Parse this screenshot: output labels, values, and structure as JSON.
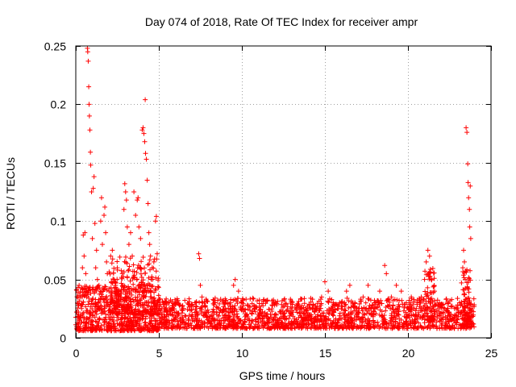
{
  "chart_data": {
    "type": "scatter",
    "title": "Day 074 of 2018, Rate Of TEC Index for receiver ampr",
    "xlabel": "GPS time / hours",
    "ylabel": "ROTI / TECUs",
    "xlim": [
      0,
      25
    ],
    "ylim": [
      0,
      0.25
    ],
    "x_ticks": [
      0,
      5,
      10,
      15,
      20,
      25
    ],
    "x_tick_labels": [
      "0",
      "5",
      "10",
      "15",
      "20",
      "25"
    ],
    "y_ticks": [
      0,
      0.05,
      0.1,
      0.15,
      0.2,
      0.25
    ],
    "y_tick_labels": [
      "0",
      "0.05",
      "0.1",
      "0.15",
      "0.2",
      "0.25"
    ],
    "grid": true,
    "marker": "plus",
    "color": "#ff0000",
    "series": [
      {
        "name": "ROTI",
        "points": [
          [
            0.05,
            0.022
          ],
          [
            0.1,
            0.018
          ],
          [
            0.15,
            0.012
          ],
          [
            0.2,
            0.045
          ],
          [
            0.25,
            0.008
          ],
          [
            0.3,
            0.035
          ],
          [
            0.35,
            0.025
          ],
          [
            0.4,
            0.06
          ],
          [
            0.45,
            0.088
          ],
          [
            0.5,
            0.07
          ],
          [
            0.55,
            0.09
          ],
          [
            0.6,
            0.055
          ],
          [
            0.65,
            0.04
          ],
          [
            0.7,
            0.248
          ],
          [
            0.72,
            0.245
          ],
          [
            0.75,
            0.237
          ],
          [
            0.78,
            0.215
          ],
          [
            0.8,
            0.2
          ],
          [
            0.82,
            0.19
          ],
          [
            0.85,
            0.178
          ],
          [
            0.88,
            0.159
          ],
          [
            0.9,
            0.148
          ],
          [
            0.95,
            0.125
          ],
          [
            1.0,
            0.085
          ],
          [
            1.05,
            0.128
          ],
          [
            1.1,
            0.138
          ],
          [
            1.15,
            0.098
          ],
          [
            1.2,
            0.06
          ],
          [
            1.25,
            0.075
          ],
          [
            1.3,
            0.05
          ],
          [
            1.35,
            0.03
          ],
          [
            1.4,
            0.045
          ],
          [
            1.5,
            0.1
          ],
          [
            1.55,
            0.12
          ],
          [
            1.6,
            0.08
          ],
          [
            1.7,
            0.105
          ],
          [
            1.75,
            0.112
          ],
          [
            1.8,
            0.09
          ],
          [
            1.85,
            0.065
          ],
          [
            1.9,
            0.055
          ],
          [
            1.95,
            0.028
          ],
          [
            2.0,
            0.04
          ],
          [
            2.1,
            0.07
          ],
          [
            2.2,
            0.075
          ],
          [
            2.3,
            0.05
          ],
          [
            2.4,
            0.045
          ],
          [
            2.5,
            0.06
          ],
          [
            2.6,
            0.04
          ],
          [
            2.7,
            0.035
          ],
          [
            2.8,
            0.055
          ],
          [
            2.9,
            0.11
          ],
          [
            2.95,
            0.132
          ],
          [
            3.0,
            0.125
          ],
          [
            3.05,
            0.118
          ],
          [
            3.1,
            0.095
          ],
          [
            3.2,
            0.08
          ],
          [
            3.3,
            0.09
          ],
          [
            3.4,
            0.07
          ],
          [
            3.5,
            0.125
          ],
          [
            3.6,
            0.105
          ],
          [
            3.7,
            0.118
          ],
          [
            3.75,
            0.12
          ],
          [
            3.8,
            0.095
          ],
          [
            3.9,
            0.085
          ],
          [
            4.0,
            0.178
          ],
          [
            4.05,
            0.18
          ],
          [
            4.1,
            0.175
          ],
          [
            4.15,
            0.168
          ],
          [
            4.18,
            0.204
          ],
          [
            4.2,
            0.158
          ],
          [
            4.25,
            0.153
          ],
          [
            4.3,
            0.135
          ],
          [
            4.35,
            0.115
          ],
          [
            4.4,
            0.09
          ],
          [
            4.45,
            0.08
          ],
          [
            4.5,
            0.07
          ],
          [
            4.6,
            0.06
          ],
          [
            4.7,
            0.065
          ],
          [
            4.8,
            0.1
          ],
          [
            4.85,
            0.104
          ],
          [
            4.9,
            0.072
          ],
          [
            5.0,
            0.03
          ],
          [
            5.2,
            0.02
          ],
          [
            5.5,
            0.015
          ],
          [
            5.8,
            0.025
          ],
          [
            6.0,
            0.018
          ],
          [
            6.2,
            0.02
          ],
          [
            6.5,
            0.025
          ],
          [
            6.8,
            0.015
          ],
          [
            7.0,
            0.02
          ],
          [
            7.2,
            0.03
          ],
          [
            7.4,
            0.072
          ],
          [
            7.45,
            0.068
          ],
          [
            7.5,
            0.045
          ],
          [
            7.6,
            0.035
          ],
          [
            7.8,
            0.02
          ],
          [
            8.0,
            0.015
          ],
          [
            8.3,
            0.02
          ],
          [
            8.6,
            0.025
          ],
          [
            9.0,
            0.03
          ],
          [
            9.3,
            0.025
          ],
          [
            9.5,
            0.045
          ],
          [
            9.6,
            0.05
          ],
          [
            9.8,
            0.04
          ],
          [
            10.0,
            0.03
          ],
          [
            10.3,
            0.02
          ],
          [
            10.6,
            0.015
          ],
          [
            11.0,
            0.018
          ],
          [
            11.5,
            0.02
          ],
          [
            12.0,
            0.015
          ],
          [
            12.5,
            0.018
          ],
          [
            13.0,
            0.02
          ],
          [
            13.3,
            0.028
          ],
          [
            13.6,
            0.022
          ],
          [
            14.0,
            0.018
          ],
          [
            14.5,
            0.025
          ],
          [
            14.8,
            0.035
          ],
          [
            15.0,
            0.048
          ],
          [
            15.2,
            0.04
          ],
          [
            15.5,
            0.03
          ],
          [
            15.8,
            0.025
          ],
          [
            16.0,
            0.03
          ],
          [
            16.3,
            0.04
          ],
          [
            16.5,
            0.045
          ],
          [
            16.8,
            0.03
          ],
          [
            17.0,
            0.025
          ],
          [
            17.3,
            0.035
          ],
          [
            17.6,
            0.045
          ],
          [
            18.0,
            0.03
          ],
          [
            18.3,
            0.04
          ],
          [
            18.6,
            0.062
          ],
          [
            18.7,
            0.055
          ],
          [
            19.0,
            0.035
          ],
          [
            19.3,
            0.045
          ],
          [
            19.6,
            0.04
          ],
          [
            19.9,
            0.03
          ],
          [
            20.2,
            0.035
          ],
          [
            20.5,
            0.025
          ],
          [
            20.8,
            0.035
          ],
          [
            21.0,
            0.05
          ],
          [
            21.1,
            0.065
          ],
          [
            21.2,
            0.075
          ],
          [
            21.3,
            0.07
          ],
          [
            21.4,
            0.05
          ],
          [
            21.6,
            0.04
          ],
          [
            21.9,
            0.03
          ],
          [
            22.2,
            0.025
          ],
          [
            22.5,
            0.02
          ],
          [
            22.8,
            0.025
          ],
          [
            23.1,
            0.03
          ],
          [
            23.3,
            0.06
          ],
          [
            23.35,
            0.075
          ],
          [
            23.4,
            0.065
          ],
          [
            23.45,
            0.05
          ],
          [
            23.5,
            0.18
          ],
          [
            23.55,
            0.176
          ],
          [
            23.6,
            0.149
          ],
          [
            23.62,
            0.133
          ],
          [
            23.65,
            0.12
          ],
          [
            23.7,
            0.11
          ],
          [
            23.72,
            0.095
          ],
          [
            23.75,
            0.13
          ],
          [
            23.78,
            0.085
          ]
        ],
        "dense_band": [
          {
            "x_range": [
              0.0,
              5.0
            ],
            "y_range": [
              0.006,
              0.045
            ],
            "count": 650
          },
          {
            "x_range": [
              2.0,
              5.0
            ],
            "y_range": [
              0.02,
              0.07
            ],
            "count": 260
          },
          {
            "x_range": [
              5.0,
              24.0
            ],
            "y_range": [
              0.008,
              0.034
            ],
            "count": 1700
          },
          {
            "x_range": [
              21.0,
              21.6
            ],
            "y_range": [
              0.015,
              0.06
            ],
            "count": 60
          },
          {
            "x_range": [
              23.2,
              23.8
            ],
            "y_range": [
              0.012,
              0.06
            ],
            "count": 70
          }
        ]
      }
    ]
  }
}
